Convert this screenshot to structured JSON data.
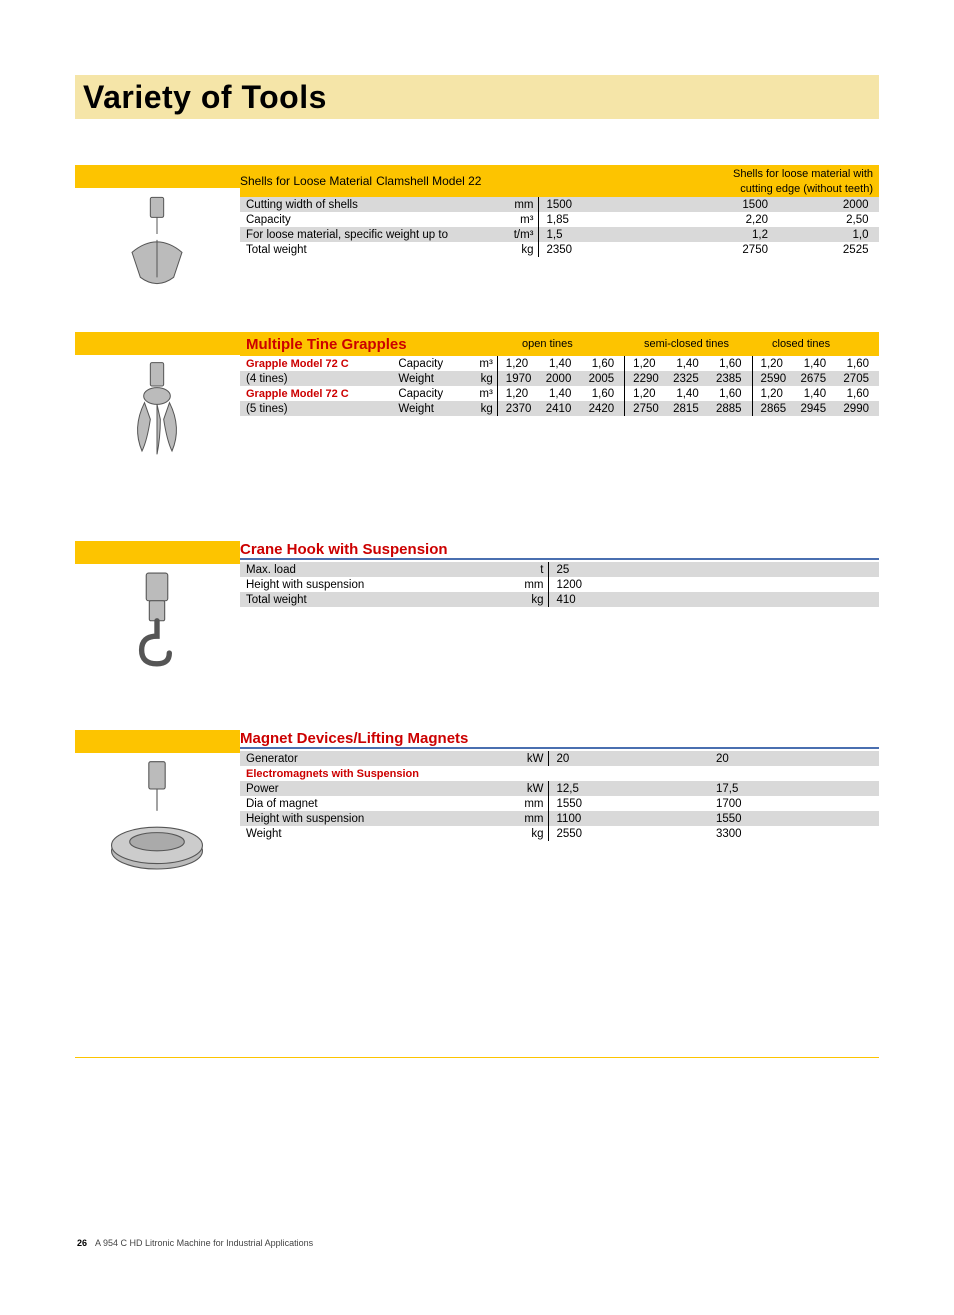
{
  "page_title": "Variety of Tools",
  "section1": {
    "title": "Shells for Loose Material",
    "subtitle": "Clamshell Model 22",
    "right_note_l1": "Shells for loose material with",
    "right_note_l2": "cutting edge (without teeth)",
    "rows": [
      {
        "label": "Cutting width of shells",
        "unit": "mm",
        "c1": "1500",
        "c2": "1500",
        "c3": "2000",
        "alt": true
      },
      {
        "label": "Capacity",
        "unit": "m³",
        "c1": "1,85",
        "c2": "2,20",
        "c3": "2,50",
        "alt": false
      },
      {
        "label": "For loose material, specific weight up to",
        "unit": "t/m³",
        "c1": "1,5",
        "c2": "1,2",
        "c3": "1,0",
        "alt": true
      },
      {
        "label": "Total weight",
        "unit": "kg",
        "c1": "2350",
        "c2": "2750",
        "c3": "2525",
        "alt": false
      }
    ]
  },
  "section2": {
    "title": "Multiple Tine Grapples",
    "hdr_open": "open tines",
    "hdr_semi": "semi-closed tines",
    "hdr_closed": "closed tines",
    "models": [
      {
        "name": "Grapple Model 72 C",
        "sub": "(4 tines)",
        "cap": [
          "1,20",
          "1,40",
          "1,60",
          "1,20",
          "1,40",
          "1,60",
          "1,20",
          "1,40",
          "1,60"
        ],
        "wt": [
          "1970",
          "2000",
          "2005",
          "2290",
          "2325",
          "2385",
          "2590",
          "2675",
          "2705"
        ]
      },
      {
        "name": "Grapple Model 72 C",
        "sub": "(5 tines)",
        "cap": [
          "1,20",
          "1,40",
          "1,60",
          "1,20",
          "1,40",
          "1,60",
          "1,20",
          "1,40",
          "1,60"
        ],
        "wt": [
          "2370",
          "2410",
          "2420",
          "2750",
          "2815",
          "2885",
          "2865",
          "2945",
          "2990"
        ]
      }
    ],
    "cap_label": "Capacity",
    "cap_unit": "m³",
    "wt_label": "Weight",
    "wt_unit": "kg"
  },
  "section3": {
    "title": "Crane Hook with Suspension",
    "rows": [
      {
        "label": "Max. load",
        "unit": "t",
        "v": "25",
        "alt": true
      },
      {
        "label": "Height with suspension",
        "unit": "mm",
        "v": "1200",
        "alt": false
      },
      {
        "label": "Total weight",
        "unit": "kg",
        "v": "410",
        "alt": true
      }
    ]
  },
  "section4": {
    "title": "Magnet Devices/Lifting Magnets",
    "gen": {
      "label": "Generator",
      "unit": "kW",
      "c1": "20",
      "c2": "20"
    },
    "sub_heading": "Electromagnets with Suspension",
    "rows": [
      {
        "label": "Power",
        "unit": "kW",
        "c1": "12,5",
        "c2": "17,5",
        "alt": true
      },
      {
        "label": "Dia of magnet",
        "unit": "mm",
        "c1": "1550",
        "c2": "1700",
        "alt": false
      },
      {
        "label": "Height with suspension",
        "unit": "mm",
        "c1": "1100",
        "c2": "1550",
        "alt": true
      },
      {
        "label": "Weight",
        "unit": "kg",
        "c1": "2550",
        "c2": "3300",
        "alt": false
      }
    ]
  },
  "footer": {
    "page": "26",
    "text": "A 954 C HD Litronic Machine for Industrial Applications"
  }
}
